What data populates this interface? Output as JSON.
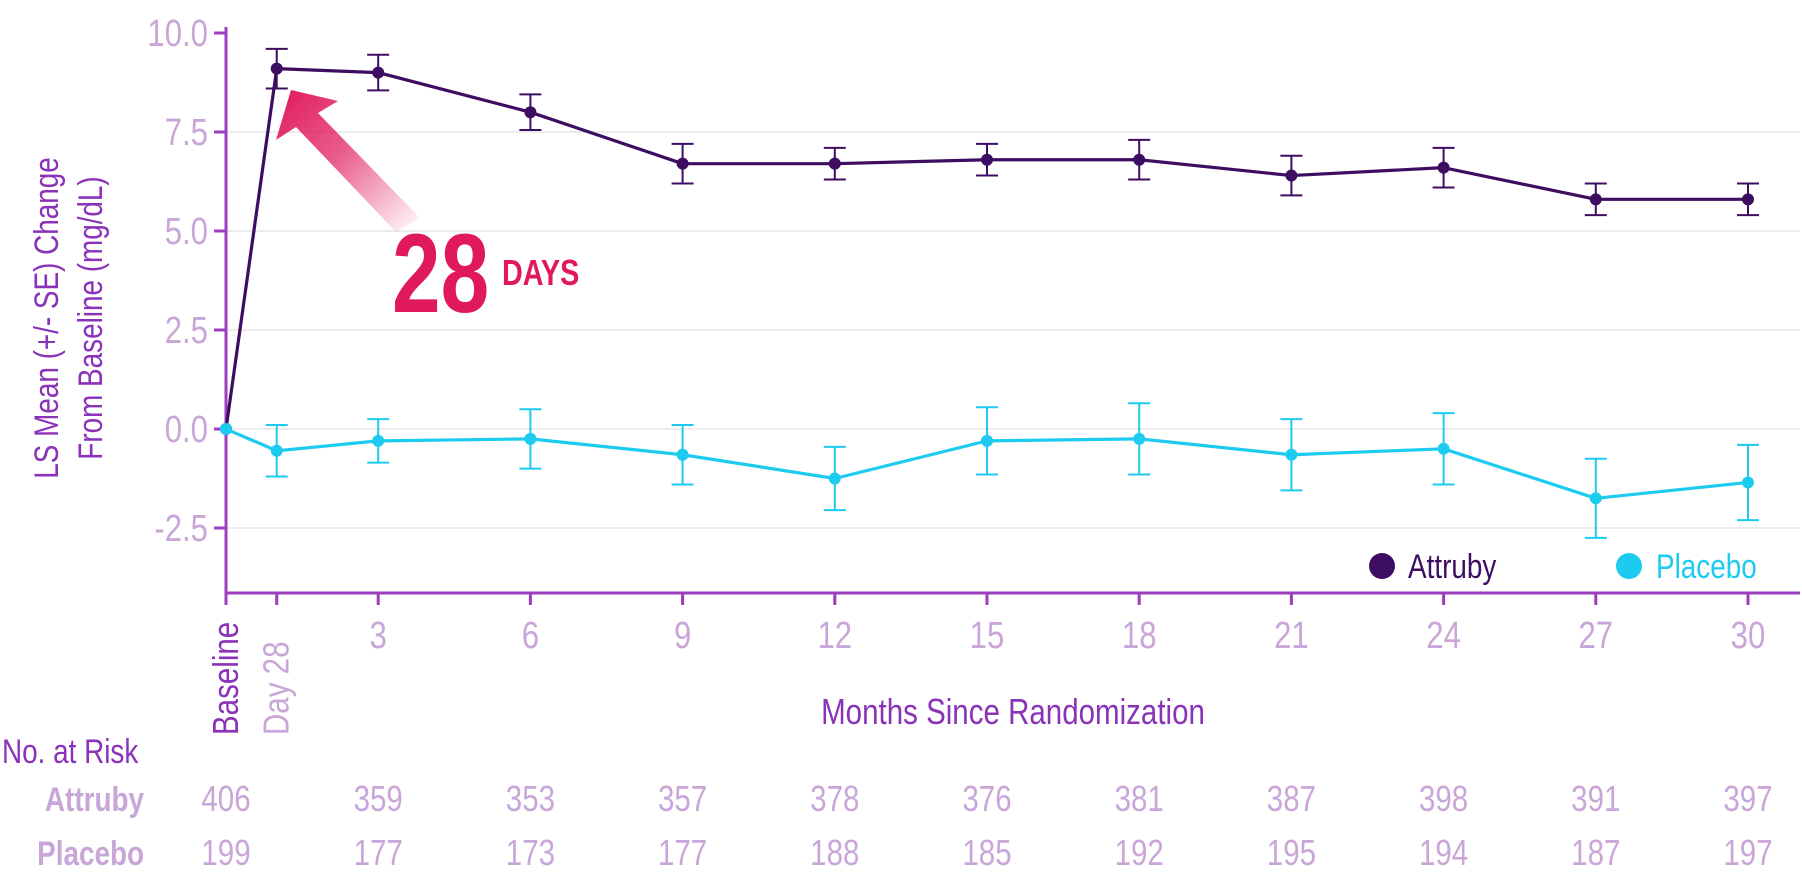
{
  "chart_data": {
    "type": "line",
    "ylabel_line1": "LS Mean (+/- SE) Change",
    "ylabel_line2": "From Baseline (mg/dL)",
    "xlabel": "Months Since Randomization",
    "ylim": [
      -4.0,
      10.0
    ],
    "yticks": [
      10.0,
      7.5,
      5.0,
      2.5,
      0.0,
      -2.5
    ],
    "ytick_labels": [
      "10.0",
      "7.5",
      "5.0",
      "2.5",
      "0.0",
      "-2.5"
    ],
    "x": [
      0,
      1,
      3,
      6,
      9,
      12,
      15,
      18,
      21,
      24,
      27,
      30
    ],
    "x_tick_labels": [
      "Baseline",
      "Day 28",
      "3",
      "6",
      "9",
      "12",
      "15",
      "18",
      "21",
      "24",
      "27",
      "30"
    ],
    "grid": "horizontal",
    "legend_position": "bottom-right",
    "series": [
      {
        "name": "Attruby",
        "color": "#3d0d62",
        "values": [
          0.0,
          9.1,
          9.0,
          8.0,
          6.7,
          6.7,
          6.8,
          6.8,
          6.4,
          6.6,
          5.8,
          5.8
        ],
        "se": [
          0.0,
          0.5,
          0.45,
          0.45,
          0.5,
          0.4,
          0.4,
          0.5,
          0.5,
          0.5,
          0.4,
          0.4
        ]
      },
      {
        "name": "Placebo",
        "color": "#1dcbf0",
        "values": [
          0.0,
          -0.55,
          -0.3,
          -0.25,
          -0.65,
          -1.25,
          -0.3,
          -0.25,
          -0.65,
          -0.5,
          -1.75,
          -1.35
        ],
        "se": [
          0.0,
          0.65,
          0.55,
          0.75,
          0.75,
          0.8,
          0.85,
          0.9,
          0.9,
          0.9,
          1.0,
          0.95
        ]
      }
    ],
    "annotation": {
      "number": "28",
      "unit": "DAYS",
      "color": "#e0185e"
    }
  },
  "risk_table": {
    "title": "No. at Risk",
    "rows": [
      {
        "name": "Attruby",
        "values": [
          "406",
          "359",
          "353",
          "357",
          "378",
          "376",
          "381",
          "387",
          "398",
          "391",
          "397"
        ]
      },
      {
        "name": "Placebo",
        "values": [
          "199",
          "177",
          "173",
          "177",
          "188",
          "185",
          "192",
          "195",
          "194",
          "187",
          "197"
        ]
      }
    ],
    "x": [
      0,
      3,
      6,
      9,
      12,
      15,
      18,
      21,
      24,
      27,
      30
    ]
  },
  "colors": {
    "axis": "#9b3fc0",
    "tick_text": "#c9a6d8",
    "label_purple": "#8a32b8",
    "grid": "#e6e6e6"
  }
}
